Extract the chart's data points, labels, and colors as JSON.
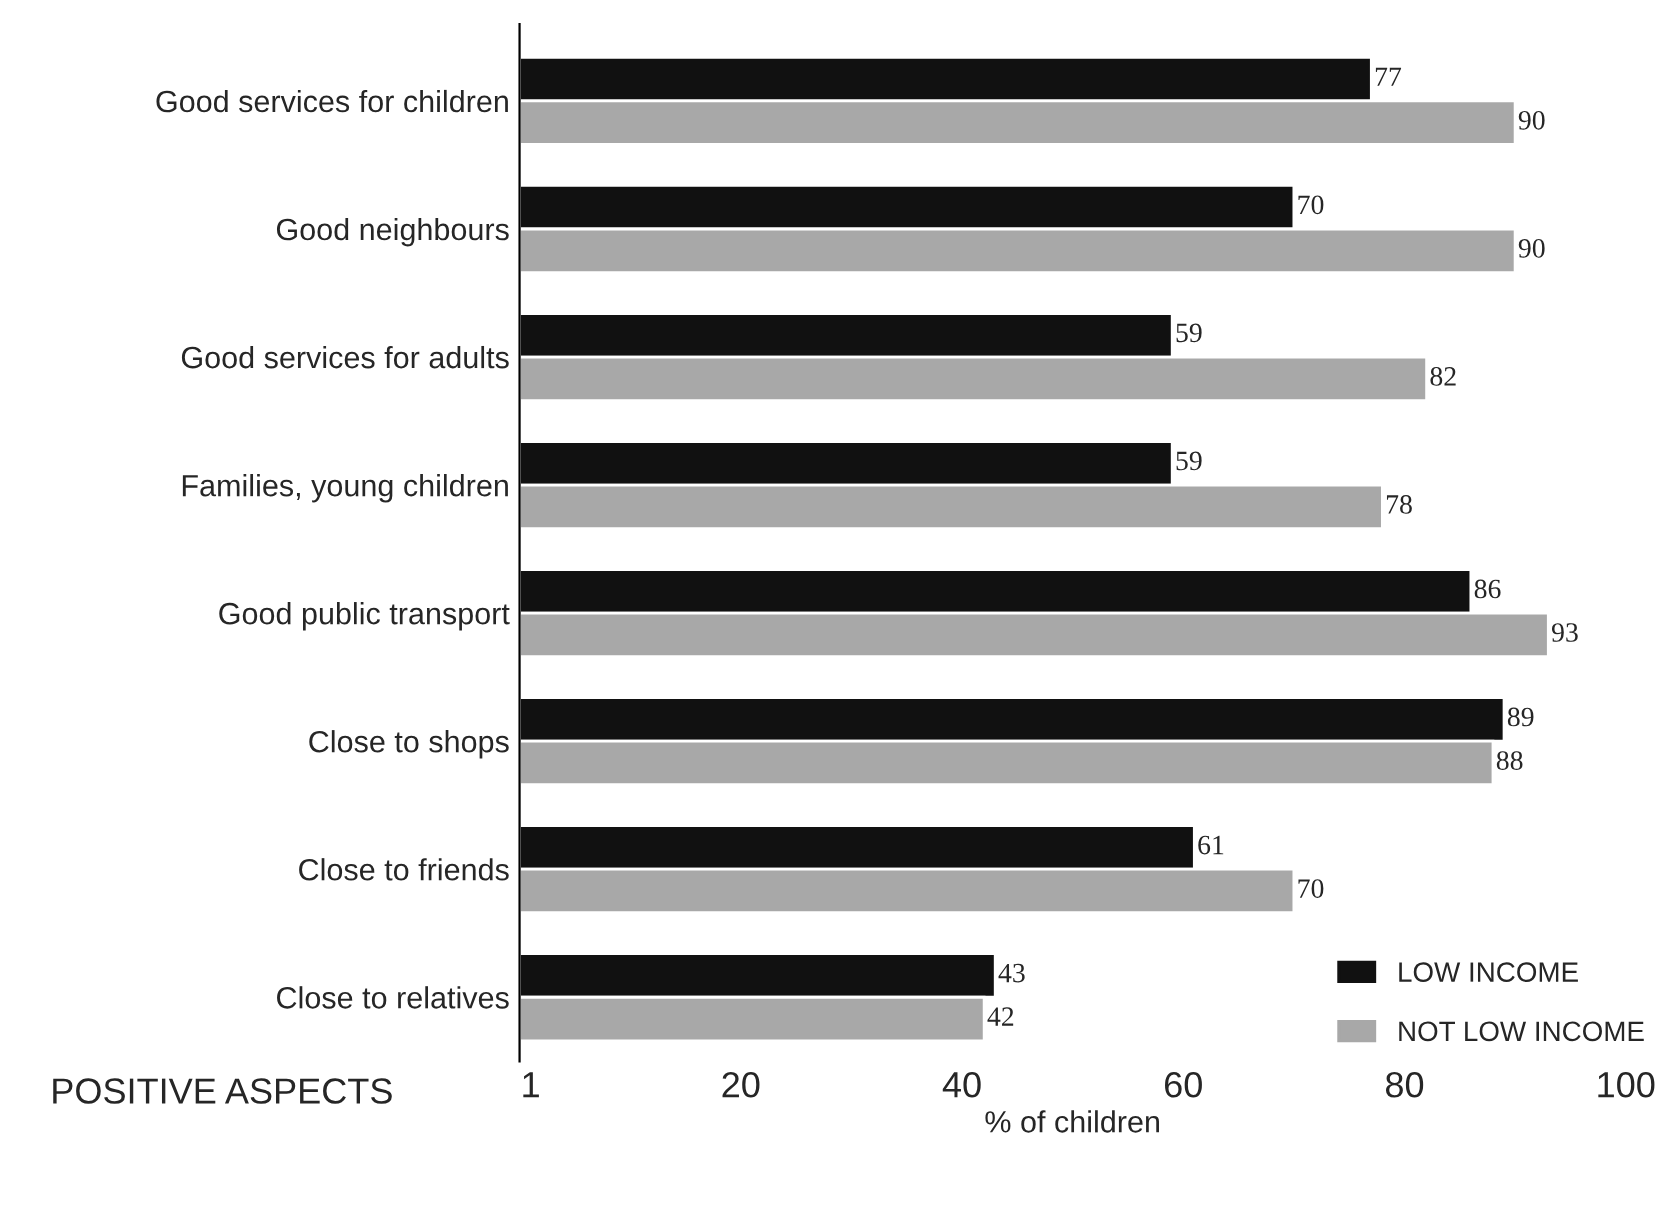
{
  "chart_data": {
    "type": "bar",
    "orientation": "horizontal",
    "categories": [
      "Good services for children",
      "Good neighbours",
      "Good services for adults",
      "Families, young children",
      "Good public transport",
      "Close to shops",
      "Close to friends",
      "Close to relatives"
    ],
    "series": [
      {
        "name": "LOW INCOME",
        "color": "#111111",
        "values": [
          77,
          70,
          59,
          59,
          86,
          89,
          61,
          43
        ]
      },
      {
        "name": "NOT LOW INCOME",
        "color": "#a8a8a8",
        "values": [
          90,
          90,
          82,
          78,
          93,
          88,
          70,
          42
        ]
      }
    ],
    "xlim": [
      0,
      100
    ],
    "xticks": [
      1,
      20,
      40,
      60,
      80,
      100
    ],
    "xlabel": "% of children",
    "annotations": [
      "POSITIVE ASPECTS"
    ],
    "data_labels": true,
    "legend": "bottom right",
    "grid": false
  }
}
